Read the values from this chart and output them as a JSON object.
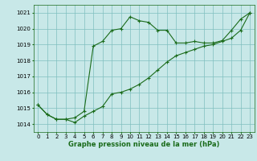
{
  "title": "Graphe pression niveau de la mer (hPa)",
  "background_color": "#c8e8e8",
  "grid_color": "#7fbfbf",
  "line_color": "#1a6b1a",
  "xlim": [
    -0.5,
    23.5
  ],
  "ylim": [
    1013.5,
    1021.5
  ],
  "yticks": [
    1014,
    1015,
    1016,
    1017,
    1018,
    1019,
    1020,
    1021
  ],
  "xticks": [
    0,
    1,
    2,
    3,
    4,
    5,
    6,
    7,
    8,
    9,
    10,
    11,
    12,
    13,
    14,
    15,
    16,
    17,
    18,
    19,
    20,
    21,
    22,
    23
  ],
  "series1_x": [
    0,
    1,
    2,
    3,
    4,
    5,
    6,
    7,
    8,
    9,
    10,
    11,
    12,
    13,
    14,
    15,
    16,
    17,
    18,
    19,
    20,
    21,
    22,
    23
  ],
  "series1_y": [
    1015.2,
    1014.6,
    1014.3,
    1014.3,
    1014.1,
    1014.5,
    1014.8,
    1015.1,
    1015.9,
    1016.0,
    1016.2,
    1016.5,
    1016.9,
    1017.4,
    1017.9,
    1018.3,
    1018.5,
    1018.7,
    1018.9,
    1019.0,
    1019.2,
    1019.4,
    1019.9,
    1021.0
  ],
  "series2_x": [
    0,
    1,
    2,
    3,
    4,
    5,
    6,
    7,
    8,
    9,
    10,
    11,
    12,
    13,
    14,
    15,
    16,
    17,
    18,
    19,
    20,
    21,
    22,
    23
  ],
  "series2_y": [
    1015.2,
    1014.6,
    1014.3,
    1014.3,
    1014.4,
    1014.8,
    1018.9,
    1019.2,
    1019.9,
    1020.0,
    1020.75,
    1020.5,
    1020.4,
    1019.9,
    1019.9,
    1019.1,
    1019.1,
    1019.2,
    1019.1,
    1019.1,
    1019.25,
    1019.9,
    1020.6,
    1021.0
  ],
  "tick_fontsize": 5.0,
  "xlabel_fontsize": 6.0,
  "marker_size": 2.5,
  "linewidth": 0.8
}
